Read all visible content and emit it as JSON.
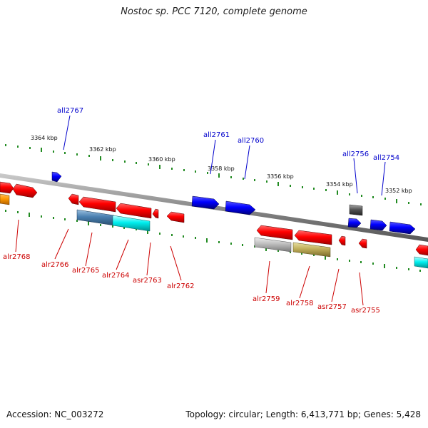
{
  "title": "Nostoc sp. PCC 7120, complete genome",
  "accession": "Accession: NC_003272",
  "stats": "Topology: circular; Length: 6,413,771 bp; Genes: 5,428",
  "colors": {
    "backbone": "#888888",
    "tick": "#228b22",
    "forward_label": "#0000cc",
    "reverse_label": "#cc0000"
  },
  "scale_labels": [
    "3364 kbp",
    "3362 kbp",
    "3360 kbp",
    "3358 kbp",
    "3356 kbp",
    "3354 kbp",
    "3352 kbp"
  ],
  "genes_top": [
    "all2767",
    "all2761",
    "all2760",
    "all2756",
    "all2754"
  ],
  "genes_bottom": [
    "alr2768",
    "alr2766",
    "alr2765",
    "alr2764",
    "asr2763",
    "alr2762",
    "alr2759",
    "alr2758",
    "asr2757",
    "asr2755"
  ]
}
